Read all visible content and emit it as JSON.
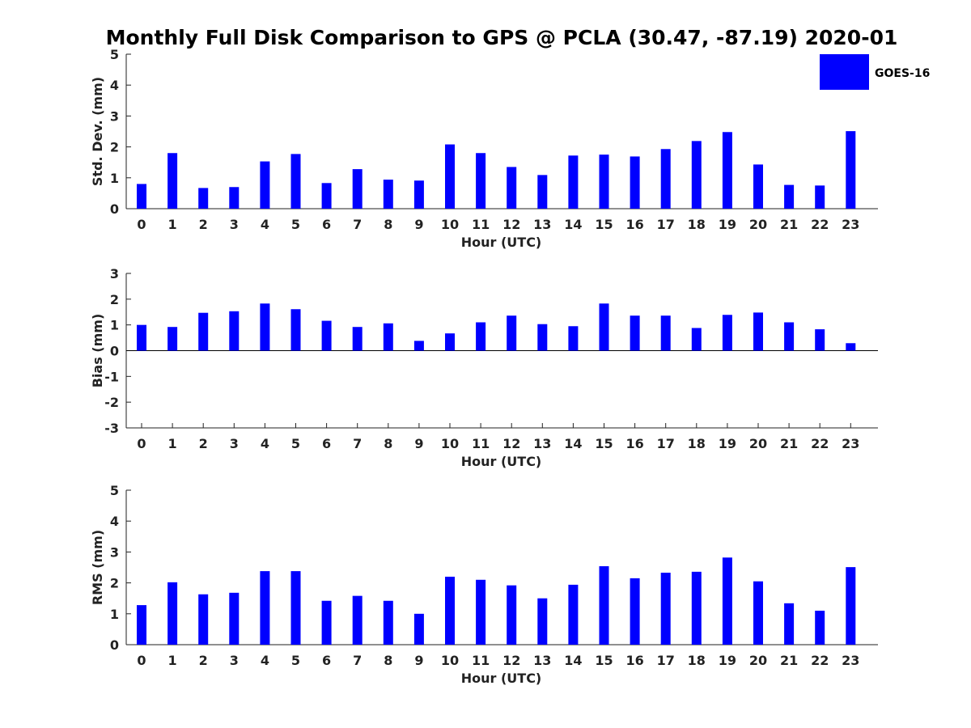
{
  "title": "Monthly Full Disk Comparison to GPS @ PCLA (30.47, -87.19) 2020-01",
  "colors": {
    "bar": "#0000ff",
    "axis": "#222222"
  },
  "legend": {
    "label": "GOES-16",
    "placement": "top-right"
  },
  "chart_data": [
    {
      "type": "bar",
      "xlabel": "Hour (UTC)",
      "ylabel": "Std. Dev. (mm)",
      "ylim": [
        0,
        5
      ],
      "yticks": [
        0,
        1,
        2,
        3,
        4,
        5
      ],
      "categories": [
        "0",
        "1",
        "2",
        "3",
        "4",
        "5",
        "6",
        "7",
        "8",
        "9",
        "10",
        "11",
        "12",
        "13",
        "14",
        "15",
        "16",
        "17",
        "18",
        "19",
        "20",
        "21",
        "22",
        "23"
      ],
      "series": [
        {
          "name": "GOES-16",
          "values": [
            0.8,
            1.8,
            0.67,
            0.7,
            1.53,
            1.77,
            0.83,
            1.28,
            0.94,
            0.91,
            2.08,
            1.8,
            1.35,
            1.09,
            1.72,
            1.75,
            1.69,
            1.93,
            2.19,
            2.48,
            1.43,
            0.77,
            0.75,
            2.51
          ]
        }
      ]
    },
    {
      "type": "bar",
      "xlabel": "Hour (UTC)",
      "ylabel": "Bias (mm)",
      "ylim": [
        -3,
        3
      ],
      "yticks": [
        -3,
        -2,
        -1,
        0,
        1,
        2,
        3
      ],
      "categories": [
        "0",
        "1",
        "2",
        "3",
        "4",
        "5",
        "6",
        "7",
        "8",
        "9",
        "10",
        "11",
        "12",
        "13",
        "14",
        "15",
        "16",
        "17",
        "18",
        "19",
        "20",
        "21",
        "22",
        "23"
      ],
      "series": [
        {
          "name": "GOES-16",
          "values": [
            1.0,
            0.92,
            1.47,
            1.53,
            1.83,
            1.61,
            1.16,
            0.92,
            1.06,
            0.38,
            0.67,
            1.1,
            1.36,
            1.03,
            0.95,
            1.83,
            1.36,
            1.36,
            0.88,
            1.39,
            1.48,
            1.1,
            0.83,
            0.29
          ]
        }
      ]
    },
    {
      "type": "bar",
      "xlabel": "Hour (UTC)",
      "ylabel": "RMS (mm)",
      "ylim": [
        0,
        5
      ],
      "yticks": [
        0,
        1,
        2,
        3,
        4,
        5
      ],
      "categories": [
        "0",
        "1",
        "2",
        "3",
        "4",
        "5",
        "6",
        "7",
        "8",
        "9",
        "10",
        "11",
        "12",
        "13",
        "14",
        "15",
        "16",
        "17",
        "18",
        "19",
        "20",
        "21",
        "22",
        "23"
      ],
      "series": [
        {
          "name": "GOES-16",
          "values": [
            1.28,
            2.02,
            1.63,
            1.68,
            2.38,
            2.38,
            1.42,
            1.58,
            1.42,
            1.0,
            2.2,
            2.1,
            1.92,
            1.5,
            1.94,
            2.54,
            2.15,
            2.33,
            2.36,
            2.82,
            2.05,
            1.34,
            1.1,
            2.51
          ]
        }
      ]
    }
  ]
}
